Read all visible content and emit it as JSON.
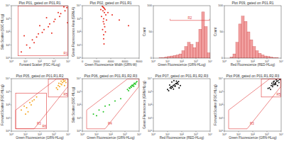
{
  "chart_data": [
    {
      "type": "scatter",
      "title": "Plot P01, gated on P01.R1",
      "x_label": "Forward Scatter (FSC-HLog)",
      "y_label": "Side Scatter (SSC-HLog)",
      "log": true,
      "xlim": [
        1,
        10000
      ],
      "ylim": [
        1,
        10000
      ],
      "xticks": [
        {
          "value": 1,
          "label": "10⁰"
        },
        {
          "value": 10,
          "label": "10¹"
        },
        {
          "value": 100,
          "label": "10²"
        },
        {
          "value": 1000,
          "label": "10³"
        },
        {
          "value": 10000,
          "label": "10⁴"
        }
      ],
      "yticks": [
        {
          "value": 1,
          "label": "10⁰"
        },
        {
          "value": 10,
          "label": "10¹"
        },
        {
          "value": 100,
          "label": "10²"
        },
        {
          "value": 1000,
          "label": "10³"
        },
        {
          "value": 10000,
          "label": "10⁴"
        }
      ],
      "color": "#e82a1e",
      "x": [
        5,
        12,
        30,
        80,
        200,
        500,
        1200,
        3000,
        8000,
        20,
        60,
        150,
        400,
        1000,
        2500,
        6000,
        8,
        40,
        100,
        300,
        700,
        2000,
        5000,
        9000
      ],
      "values": [
        3,
        10,
        25,
        70,
        150,
        400,
        900,
        2500,
        7000,
        6,
        40,
        90,
        250,
        600,
        1500,
        4000,
        50,
        15,
        300,
        1200,
        80,
        3000,
        8000,
        500
      ],
      "regions": [
        {
          "label": "R1",
          "x": [
            3,
            9500
          ],
          "y": [
            1.5,
            9500
          ]
        }
      ]
    },
    {
      "type": "scatter",
      "title": "Plot P02, gated on P01.R1",
      "x_label": "Green Fluorescence Width (GRN-W)",
      "y_label": "Green Fluorescence Area (GRN-A)",
      "log": "y",
      "xlim": [
        0,
        8000
      ],
      "ylim": [
        1,
        10000
      ],
      "xticks": [
        0,
        2000,
        4000,
        6000,
        8000
      ],
      "yticks": [
        {
          "value": 1,
          "label": "10⁰"
        },
        {
          "value": 10,
          "label": "10¹"
        },
        {
          "value": 100,
          "label": "10²"
        },
        {
          "value": 1000,
          "label": "10³"
        },
        {
          "value": 10000,
          "label": "10⁴"
        }
      ],
      "color": "#e82a1e",
      "x": [
        2800,
        3000,
        3200,
        2900,
        3100,
        3300,
        2700,
        3000,
        3400,
        2950,
        3050,
        3150,
        2850,
        3250,
        3000,
        2600,
        3600,
        4200,
        5200,
        6500,
        3000,
        3100,
        2900,
        3050
      ],
      "values": [
        9000,
        7000,
        5000,
        4000,
        3000,
        2000,
        1500,
        1000,
        800,
        600,
        400,
        250,
        150,
        100,
        60,
        5000,
        3000,
        2000,
        800,
        300,
        30,
        6000,
        8000,
        12
      ]
    },
    {
      "type": "histogram",
      "x_label": "Green Fluorescence (GRN-HLog)",
      "y_label": "Count",
      "log": "x",
      "xlim": [
        1,
        10000
      ],
      "ylim": [
        0,
        100
      ],
      "xticks": [
        {
          "value": 1,
          "label": "10⁰"
        },
        {
          "value": 10,
          "label": "10¹"
        },
        {
          "value": 100,
          "label": "10²"
        },
        {
          "value": 1000,
          "label": "10³"
        },
        {
          "value": 10000,
          "label": "10⁴"
        }
      ],
      "yticks": [
        0,
        50,
        100
      ],
      "color": "#f2a1a1",
      "bins": [
        1,
        1.58,
        2.51,
        3.98,
        6.31,
        10,
        15.8,
        25.1,
        39.8,
        63.1,
        100,
        158,
        251,
        398,
        631,
        1000,
        1580,
        2510,
        3980,
        6310,
        10000
      ],
      "values": [
        0,
        0,
        1,
        1,
        2,
        3,
        4,
        5,
        6,
        8,
        14,
        22,
        30,
        26,
        20,
        30,
        55,
        88,
        60,
        10
      ],
      "markers": [
        {
          "label": "R2",
          "x": [
            15,
            9000
          ],
          "y": 72
        }
      ]
    },
    {
      "type": "histogram",
      "title": "Plot P09, gated on P01.R1",
      "x_label": "Red Fluorescence (RED-HLog)",
      "y_label": "Count",
      "log": "x",
      "xlim": [
        1,
        10000
      ],
      "ylim": [
        0,
        100
      ],
      "xticks": [
        {
          "value": 1,
          "label": "10⁰"
        },
        {
          "value": 10,
          "label": "10¹"
        },
        {
          "value": 100,
          "label": "10²"
        },
        {
          "value": 1000,
          "label": "10³"
        },
        {
          "value": 10000,
          "label": "10⁴"
        }
      ],
      "yticks": [
        0,
        50,
        100
      ],
      "color": "#f2a1a1",
      "bins": [
        1,
        1.58,
        2.51,
        3.98,
        6.31,
        10,
        15.8,
        25.1,
        39.8,
        63.1,
        100,
        158,
        251,
        398,
        631,
        1000,
        1580,
        2510,
        3980,
        6310,
        10000
      ],
      "values": [
        0,
        0,
        2,
        8,
        30,
        65,
        80,
        70,
        50,
        35,
        22,
        14,
        9,
        6,
        4,
        3,
        2,
        1,
        1,
        0
      ]
    },
    {
      "type": "scatter",
      "title": "Plot P05, gated on P01.R1.R2",
      "x_label": "Green Fluorescence (GRN-HLog)",
      "y_label": "Forward Scatter (FSC-HLog)",
      "log": true,
      "xlim": [
        1,
        10000
      ],
      "ylim": [
        1,
        10000
      ],
      "xticks": [
        {
          "value": 1,
          "label": "10⁰"
        },
        {
          "value": 10,
          "label": "10¹"
        },
        {
          "value": 100,
          "label": "10²"
        },
        {
          "value": 1000,
          "label": "10³"
        },
        {
          "value": 10000,
          "label": "10⁴"
        }
      ],
      "yticks": [
        {
          "value": 1,
          "label": "10⁰"
        },
        {
          "value": 10,
          "label": "10¹"
        },
        {
          "value": 100,
          "label": "10²"
        },
        {
          "value": 1000,
          "label": "10³"
        },
        {
          "value": 10000,
          "label": "10⁴"
        }
      ],
      "color": "#f5a623",
      "x": [
        5,
        8,
        12,
        20,
        30,
        15,
        40,
        60,
        25,
        10,
        1500,
        2000,
        3000,
        4000,
        5000,
        2500,
        3500,
        6000,
        1800,
        4500,
        7000,
        2200,
        3200,
        5500
      ],
      "values": [
        40,
        80,
        60,
        150,
        200,
        30,
        250,
        400,
        100,
        20,
        2000,
        3000,
        4000,
        5000,
        6000,
        2500,
        3500,
        7000,
        1500,
        8000,
        5000,
        4500,
        6500,
        3000
      ],
      "regions": [
        {
          "label": "R3",
          "points": [
            [
              2,
              1.5
            ],
            [
              40,
              1.5
            ],
            [
              9500,
              2500
            ],
            [
              9500,
              9500
            ],
            [
              1500,
              9500
            ],
            [
              2,
              40
            ]
          ]
        },
        {
          "label": "R5",
          "x": [
            400,
            9500
          ],
          "y": [
            400,
            9500
          ]
        },
        {
          "label": "R6",
          "x": [
            2,
            300
          ],
          "y": [
            1.5,
            800
          ]
        }
      ]
    },
    {
      "type": "scatter",
      "title": "Plot P06, gated on P01.R1.R2.R3",
      "x_label": "Green Fluorescence (GRN-HLog)",
      "y_label": "Side Scatter (SSC-HLog)",
      "log": true,
      "xlim": [
        1,
        10000
      ],
      "ylim": [
        1,
        10000
      ],
      "xticks": [
        {
          "value": 1,
          "label": "10⁰"
        },
        {
          "value": 10,
          "label": "10¹"
        },
        {
          "value": 100,
          "label": "10²"
        },
        {
          "value": 1000,
          "label": "10³"
        },
        {
          "value": 10000,
          "label": "10⁴"
        }
      ],
      "yticks": [
        {
          "value": 1,
          "label": "10⁰"
        },
        {
          "value": 10,
          "label": "10¹"
        },
        {
          "value": 100,
          "label": "10²"
        },
        {
          "value": 1000,
          "label": "10³"
        },
        {
          "value": 10000,
          "label": "10⁴"
        }
      ],
      "color": "#22c422",
      "x": [
        6,
        15,
        30,
        80,
        200,
        500,
        40,
        10,
        1500,
        2000,
        3000,
        4000,
        5000,
        2500,
        3500,
        6000,
        1800,
        4500,
        7000,
        2200,
        3200,
        5500,
        2800,
        4200
      ],
      "values": [
        20,
        40,
        30,
        100,
        200,
        300,
        80,
        15,
        1500,
        2000,
        3000,
        3500,
        4000,
        2500,
        2800,
        5000,
        1200,
        4500,
        6000,
        1800,
        3200,
        3800,
        2200,
        2600
      ],
      "regions": [
        {
          "label": "R4",
          "points": [
            [
              2,
              1.5
            ],
            [
              40,
              1.5
            ],
            [
              9500,
              2500
            ],
            [
              9500,
              9500
            ],
            [
              1500,
              9500
            ],
            [
              2,
              40
            ]
          ]
        }
      ]
    },
    {
      "type": "scatter",
      "title": "Plot P07, gated on P01.R1.R2.R3",
      "x_label": "Red Fluorescence (RED-HLog)",
      "y_label": "Green Fluorescence (GRN-HLog)",
      "log": true,
      "xlim": [
        1,
        10000
      ],
      "ylim": [
        1,
        10000
      ],
      "xticks": [
        {
          "value": 1,
          "label": "10⁰"
        },
        {
          "value": 10,
          "label": "10¹"
        },
        {
          "value": 100,
          "label": "10²"
        },
        {
          "value": 1000,
          "label": "10³"
        },
        {
          "value": 10000,
          "label": "10⁴"
        }
      ],
      "yticks": [
        {
          "value": 1,
          "label": "10⁰"
        },
        {
          "value": 10,
          "label": "10¹"
        },
        {
          "value": 100,
          "label": "10²"
        },
        {
          "value": 1000,
          "label": "10³"
        },
        {
          "value": 10000,
          "label": "10⁴"
        }
      ],
      "color": "#111111",
      "x": [
        10,
        15,
        20,
        25,
        30,
        40,
        50,
        60,
        18,
        22,
        35,
        45,
        12,
        28,
        80,
        14,
        33,
        55,
        20,
        26,
        38,
        17,
        42,
        65
      ],
      "values": [
        1500,
        2000,
        2500,
        3000,
        3500,
        4000,
        5000,
        6000,
        1800,
        2200,
        2800,
        4500,
        1200,
        7000,
        3000,
        3300,
        2600,
        3800,
        5500,
        1600,
        4200,
        2400,
        6500,
        2000
      ]
    },
    {
      "type": "scatter",
      "title": "Plot P08, gated on P01.R1.R2.R3",
      "x_label": "Green Fluorescence (GRN-HLog)",
      "y_label": "Forward Scatter (FSC-HLog)",
      "log": true,
      "xlim": [
        1,
        10000
      ],
      "ylim": [
        1,
        10000
      ],
      "xticks": [
        {
          "value": 1,
          "label": "10⁰"
        },
        {
          "value": 10,
          "label": "10¹"
        },
        {
          "value": 100,
          "label": "10²"
        },
        {
          "value": 1000,
          "label": "10³"
        },
        {
          "value": 10000,
          "label": "10⁴"
        }
      ],
      "yticks": [
        {
          "value": 1,
          "label": "10⁰"
        },
        {
          "value": 10,
          "label": "10¹"
        },
        {
          "value": 100,
          "label": "10²"
        },
        {
          "value": 1000,
          "label": "10³"
        },
        {
          "value": 10000,
          "label": "10⁴"
        }
      ],
      "color": "#111111",
      "x": [
        1500,
        2000,
        3000,
        4000,
        5000,
        2500,
        3500,
        6000,
        1800,
        4500,
        7000,
        2200,
        3200,
        5500,
        2800,
        4200,
        1200,
        8000,
        3800,
        2600
      ],
      "values": [
        2000,
        3000,
        4000,
        5000,
        6000,
        2500,
        3500,
        7000,
        1500,
        8000,
        5000,
        4500,
        6500,
        3000,
        5500,
        3800,
        1800,
        8500,
        4200,
        3300
      ],
      "regions": [
        {
          "label": "R3",
          "points": [
            [
              2,
              1.5
            ],
            [
              40,
              1.5
            ],
            [
              9500,
              2500
            ],
            [
              9500,
              9500
            ],
            [
              1500,
              9500
            ],
            [
              2,
              40
            ]
          ]
        },
        {
          "label": "R5",
          "x": [
            400,
            9500
          ],
          "y": [
            400,
            9500
          ]
        }
      ]
    }
  ]
}
